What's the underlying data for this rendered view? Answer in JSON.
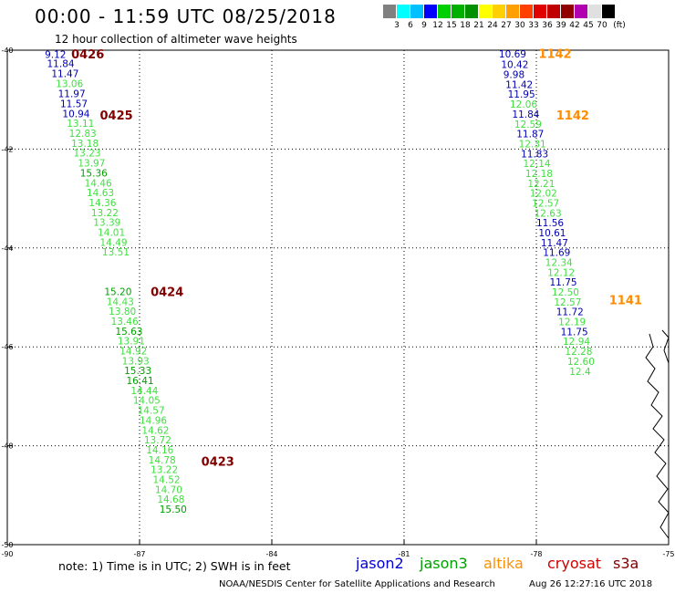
{
  "header": {
    "title": "00:00 - 11:59 UTC 08/25/2018",
    "subtitle": "12 hour collection of altimeter wave heights"
  },
  "colorbar": {
    "unit": "(ft)",
    "colors": [
      "#808080",
      "#00ffff",
      "#00c0ff",
      "#0000ff",
      "#00d000",
      "#00b000",
      "#009000",
      "#ffff00",
      "#ffd000",
      "#ffa000",
      "#ff4000",
      "#e00000",
      "#c00000",
      "#900000",
      "#b000b0",
      "#e0e0e0",
      "#000000"
    ],
    "labels": [
      "3",
      "6",
      "9",
      "12",
      "15",
      "18",
      "21",
      "24",
      "27",
      "30",
      "33",
      "36",
      "39",
      "42",
      "45",
      "70"
    ]
  },
  "chart_data": {
    "type": "map",
    "lon_range": [
      -90,
      -75
    ],
    "lat_range": [
      50,
      40
    ],
    "lon_ticks": [
      "-90",
      "-87",
      "-84",
      "-81",
      "-78",
      "-75"
    ],
    "lat_ticks": [
      "-40",
      "-42",
      "-44",
      "-46",
      "-48",
      "-50"
    ],
    "track_labels": [
      {
        "text": "0426",
        "color": "#800000",
        "lon": -88.55,
        "lat": 40.07
      },
      {
        "text": "0425",
        "color": "#800000",
        "lon": -87.9,
        "lat": 41.31
      },
      {
        "text": "0424",
        "color": "#800000",
        "lon": -86.75,
        "lat": 44.88
      },
      {
        "text": "0423",
        "color": "#800000",
        "lon": -85.6,
        "lat": 48.31
      },
      {
        "text": "1142",
        "color": "#ff8c00",
        "lon": -77.95,
        "lat": 40.06
      },
      {
        "text": "1142",
        "color": "#ff8c00",
        "lon": -77.55,
        "lat": 41.31
      },
      {
        "text": "1141",
        "color": "#ff8c00",
        "lon": -76.35,
        "lat": 45.05
      }
    ],
    "tracks": [
      {
        "satellite": "left-track",
        "points": [
          {
            "v": "9.12",
            "c": "#0000b0",
            "lon": -89.15,
            "lat": 40.08
          },
          {
            "v": "11.84",
            "c": "#0000b0",
            "lon": -89.1,
            "lat": 40.27
          },
          {
            "v": "11.47",
            "c": "#0000b0",
            "lon": -89.0,
            "lat": 40.47
          },
          {
            "v": "13.06",
            "c": "#40e040",
            "lon": -88.9,
            "lat": 40.67
          },
          {
            "v": "11.97",
            "c": "#0000b0",
            "lon": -88.85,
            "lat": 40.88
          },
          {
            "v": "11.57",
            "c": "#0000b0",
            "lon": -88.8,
            "lat": 41.08
          },
          {
            "v": "10.94",
            "c": "#0000b0",
            "lon": -88.75,
            "lat": 41.28
          },
          {
            "v": "13.11",
            "c": "#40e040",
            "lon": -88.65,
            "lat": 41.48
          },
          {
            "v": "12.83",
            "c": "#40e040",
            "lon": -88.6,
            "lat": 41.68
          },
          {
            "v": "13.18",
            "c": "#40e040",
            "lon": -88.55,
            "lat": 41.88
          },
          {
            "v": "13.23",
            "c": "#40e040",
            "lon": -88.5,
            "lat": 42.08
          },
          {
            "v": "13.97",
            "c": "#40e040",
            "lon": -88.4,
            "lat": 42.28
          },
          {
            "v": "15.36",
            "c": "#00a000",
            "lon": -88.35,
            "lat": 42.48
          },
          {
            "v": "14.46",
            "c": "#40e040",
            "lon": -88.25,
            "lat": 42.68
          },
          {
            "v": "14.63",
            "c": "#40e040",
            "lon": -88.2,
            "lat": 42.88
          },
          {
            "v": "14.36",
            "c": "#40e040",
            "lon": -88.15,
            "lat": 43.08
          },
          {
            "v": "13.22",
            "c": "#40e040",
            "lon": -88.1,
            "lat": 43.28
          },
          {
            "v": "13.39",
            "c": "#40e040",
            "lon": -88.05,
            "lat": 43.48
          },
          {
            "v": "14.01",
            "c": "#40e040",
            "lon": -87.95,
            "lat": 43.68
          },
          {
            "v": "14.49",
            "c": "#40e040",
            "lon": -87.9,
            "lat": 43.88
          },
          {
            "v": "13.51",
            "c": "#40e040",
            "lon": -87.85,
            "lat": 44.08
          },
          {
            "v": "15.20",
            "c": "#00a000",
            "lon": -87.8,
            "lat": 44.88
          },
          {
            "v": "14.43",
            "c": "#40e040",
            "lon": -87.75,
            "lat": 45.08
          },
          {
            "v": "13.80",
            "c": "#40e040",
            "lon": -87.7,
            "lat": 45.28
          },
          {
            "v": "13.46",
            "c": "#40e040",
            "lon": -87.65,
            "lat": 45.48
          },
          {
            "v": "15.63",
            "c": "#00a000",
            "lon": -87.55,
            "lat": 45.68
          },
          {
            "v": "13.91",
            "c": "#40e040",
            "lon": -87.5,
            "lat": 45.88
          },
          {
            "v": "14.92",
            "c": "#40e040",
            "lon": -87.45,
            "lat": 46.08
          },
          {
            "v": "13.93",
            "c": "#40e040",
            "lon": -87.4,
            "lat": 46.28
          },
          {
            "v": "15.33",
            "c": "#00a000",
            "lon": -87.35,
            "lat": 46.48
          },
          {
            "v": "16.41",
            "c": "#00a000",
            "lon": -87.3,
            "lat": 46.68
          },
          {
            "v": "14.44",
            "c": "#40e040",
            "lon": -87.2,
            "lat": 46.88
          },
          {
            "v": "14.05",
            "c": "#40e040",
            "lon": -87.15,
            "lat": 47.08
          },
          {
            "v": "14.57",
            "c": "#40e040",
            "lon": -87.05,
            "lat": 47.28
          },
          {
            "v": "14.96",
            "c": "#40e040",
            "lon": -87.0,
            "lat": 47.48
          },
          {
            "v": "14.62",
            "c": "#40e040",
            "lon": -86.95,
            "lat": 47.68
          },
          {
            "v": "13.72",
            "c": "#40e040",
            "lon": -86.9,
            "lat": 47.88
          },
          {
            "v": "14.16",
            "c": "#40e040",
            "lon": -86.85,
            "lat": 48.08
          },
          {
            "v": "14.78",
            "c": "#40e040",
            "lon": -86.8,
            "lat": 48.28
          },
          {
            "v": "13.22",
            "c": "#40e040",
            "lon": -86.75,
            "lat": 48.48
          },
          {
            "v": "14.52",
            "c": "#40e040",
            "lon": -86.7,
            "lat": 48.68
          },
          {
            "v": "14.70",
            "c": "#40e040",
            "lon": -86.65,
            "lat": 48.88
          },
          {
            "v": "14.68",
            "c": "#40e040",
            "lon": -86.6,
            "lat": 49.08
          },
          {
            "v": "15.50",
            "c": "#00a000",
            "lon": -86.55,
            "lat": 49.28
          }
        ]
      },
      {
        "satellite": "right-track",
        "points": [
          {
            "v": "10.69",
            "c": "#0000b0",
            "lon": -78.85,
            "lat": 40.07
          },
          {
            "v": "10.42",
            "c": "#0000b0",
            "lon": -78.8,
            "lat": 40.29
          },
          {
            "v": "9.98",
            "c": "#0000b0",
            "lon": -78.75,
            "lat": 40.49
          },
          {
            "v": "11.42",
            "c": "#0000b0",
            "lon": -78.7,
            "lat": 40.69
          },
          {
            "v": "11.95",
            "c": "#0000b0",
            "lon": -78.65,
            "lat": 40.89
          },
          {
            "v": "12.06",
            "c": "#40e040",
            "lon": -78.6,
            "lat": 41.09
          },
          {
            "v": "11.84",
            "c": "#0000b0",
            "lon": -78.55,
            "lat": 41.29
          },
          {
            "v": "12.59",
            "c": "#40e040",
            "lon": -78.5,
            "lat": 41.49
          },
          {
            "v": "11.87",
            "c": "#0000b0",
            "lon": -78.45,
            "lat": 41.69
          },
          {
            "v": "12.31",
            "c": "#40e040",
            "lon": -78.4,
            "lat": 41.89
          },
          {
            "v": "11.83",
            "c": "#0000b0",
            "lon": -78.35,
            "lat": 42.09
          },
          {
            "v": "12.14",
            "c": "#40e040",
            "lon": -78.3,
            "lat": 42.29
          },
          {
            "v": "12.18",
            "c": "#40e040",
            "lon": -78.25,
            "lat": 42.49
          },
          {
            "v": "12.21",
            "c": "#40e040",
            "lon": -78.2,
            "lat": 42.69
          },
          {
            "v": "12.02",
            "c": "#40e040",
            "lon": -78.15,
            "lat": 42.89
          },
          {
            "v": "12.57",
            "c": "#40e040",
            "lon": -78.1,
            "lat": 43.09
          },
          {
            "v": "12.63",
            "c": "#40e040",
            "lon": -78.05,
            "lat": 43.29
          },
          {
            "v": "11.56",
            "c": "#0000b0",
            "lon": -78.0,
            "lat": 43.49
          },
          {
            "v": "10.61",
            "c": "#0000b0",
            "lon": -77.95,
            "lat": 43.69
          },
          {
            "v": "11.47",
            "c": "#0000b0",
            "lon": -77.9,
            "lat": 43.89
          },
          {
            "v": "11.69",
            "c": "#0000b0",
            "lon": -77.85,
            "lat": 44.09
          },
          {
            "v": "12.34",
            "c": "#40e040",
            "lon": -77.8,
            "lat": 44.29
          },
          {
            "v": "12.12",
            "c": "#40e040",
            "lon": -77.75,
            "lat": 44.49
          },
          {
            "v": "11.75",
            "c": "#0000b0",
            "lon": -77.7,
            "lat": 44.69
          },
          {
            "v": "12.50",
            "c": "#40e040",
            "lon": -77.65,
            "lat": 44.89
          },
          {
            "v": "12.57",
            "c": "#40e040",
            "lon": -77.6,
            "lat": 45.09
          },
          {
            "v": "11.72",
            "c": "#0000b0",
            "lon": -77.55,
            "lat": 45.29
          },
          {
            "v": "12.19",
            "c": "#40e040",
            "lon": -77.5,
            "lat": 45.49
          },
          {
            "v": "11.75",
            "c": "#0000b0",
            "lon": -77.45,
            "lat": 45.69
          },
          {
            "v": "12.94",
            "c": "#40e040",
            "lon": -77.4,
            "lat": 45.89
          },
          {
            "v": "12.28",
            "c": "#40e040",
            "lon": -77.35,
            "lat": 46.09
          },
          {
            "v": "12.60",
            "c": "#40e040",
            "lon": -77.3,
            "lat": 46.29
          },
          {
            "v": "12.4",
            "c": "#40e040",
            "lon": -77.25,
            "lat": 46.49
          }
        ]
      }
    ]
  },
  "footer": {
    "note": "note: 1) Time is in UTC; 2) SWH is in feet",
    "satellites": [
      {
        "name": "jason2",
        "color": "#0000d0"
      },
      {
        "name": "jason3",
        "color": "#00a000"
      },
      {
        "name": "altika",
        "color": "#ff9000"
      },
      {
        "name": "cryosat",
        "color": "#d00000"
      },
      {
        "name": "s3a",
        "color": "#800000"
      }
    ],
    "credit": "NOAA/NESDIS Center for Satellite Applications and Research",
    "timestamp": "Aug 26 12:27:16 UTC 2018"
  }
}
